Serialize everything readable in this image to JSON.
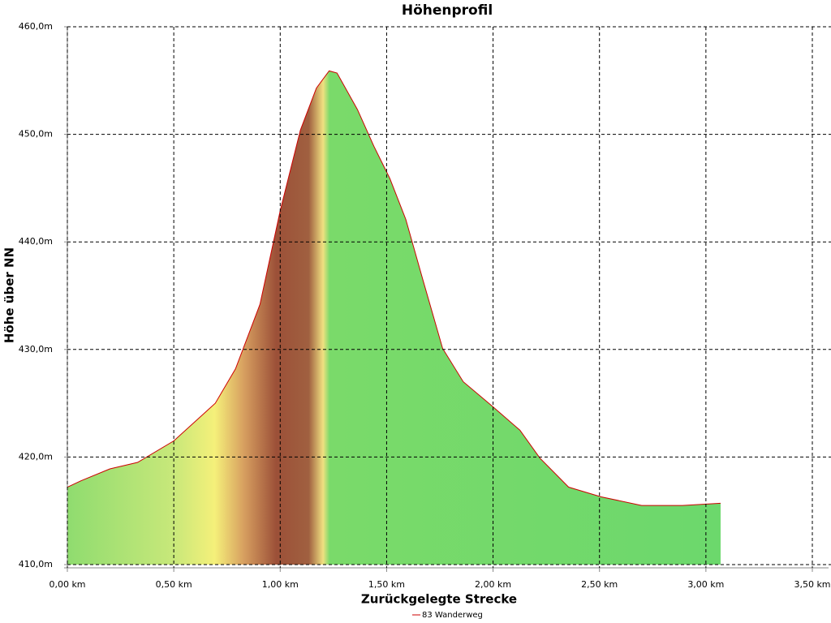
{
  "chart_data": {
    "type": "area",
    "title": "Höhenprofil",
    "x_label": "Zurückgelegte Strecke",
    "y_label": "Höhe über NN",
    "x": [
      0,
      0.065,
      0.2,
      0.33,
      0.5,
      0.695,
      0.79,
      0.905,
      1.0,
      1.095,
      1.17,
      1.23,
      1.267,
      1.363,
      1.44,
      1.515,
      1.59,
      1.67,
      1.763,
      1.86,
      1.992,
      2.126,
      2.22,
      2.355,
      2.508,
      2.698,
      2.89,
      3.069
    ],
    "series": [
      {
        "name": "83 Wanderweg",
        "color": "#cc0000",
        "values": [
          417.2,
          417.8,
          418.9,
          419.5,
          421.5,
          425,
          428.2,
          434.2,
          442.9,
          450.4,
          454.3,
          455.9,
          455.7,
          452.3,
          448.9,
          445.9,
          442.1,
          436.5,
          430.1,
          427,
          424.8,
          422.5,
          419.9,
          417.2,
          416.3,
          415.5,
          415.5,
          415.7
        ]
      }
    ],
    "xlim": [
      0,
      3.5
    ],
    "ylim": [
      410,
      460
    ],
    "xticks": [
      {
        "value": 0,
        "label": "0,00 km"
      },
      {
        "value": 0.5,
        "label": "0,50 km"
      },
      {
        "value": 1,
        "label": "1,00 km"
      },
      {
        "value": 1.5,
        "label": "1,50 km"
      },
      {
        "value": 2,
        "label": "2,00 km"
      },
      {
        "value": 2.5,
        "label": "2,50 km"
      },
      {
        "value": 3,
        "label": "3,00 km"
      },
      {
        "value": 3.5,
        "label": "3,50 km"
      }
    ],
    "yticks": [
      {
        "value": 410,
        "label": "410,0m"
      },
      {
        "value": 420,
        "label": "420,0m"
      },
      {
        "value": 430,
        "label": "430,0m"
      },
      {
        "value": 440,
        "label": "440,0m"
      },
      {
        "value": 450,
        "label": "450,0m"
      },
      {
        "value": 460,
        "label": "460,0m"
      }
    ],
    "grid": true
  }
}
